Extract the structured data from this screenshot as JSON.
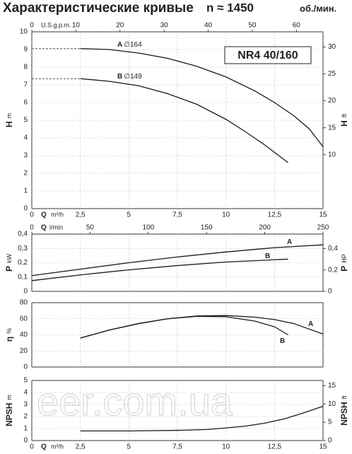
{
  "header": {
    "title": "Характеристические кривые",
    "speed": "n ≈ 1450",
    "unit": "об./мин."
  },
  "watermark": "eer.com.ua",
  "chart_data": [
    {
      "type": "line",
      "color": "#1a1a1a",
      "grid": true,
      "leader_lines": true,
      "model": "NR4 40/160",
      "xlabel": "Q",
      "xunit": "m³/h",
      "xlim": [
        0,
        15
      ],
      "xticks": [
        0,
        {
          "value": 2.5,
          "label": "2,5"
        },
        5,
        {
          "value": 7.5,
          "label": "7,5"
        },
        10,
        {
          "value": 12.5,
          "label": "12,5"
        },
        15
      ],
      "x2label": "U.S.g.p.m.",
      "x2lim": [
        0,
        66.04
      ],
      "x2ticks": [
        0,
        10,
        20,
        30,
        40,
        50,
        60
      ],
      "ylabel": "H",
      "yunit": "m",
      "ylim": [
        0,
        10
      ],
      "yticks": [
        0,
        1,
        2,
        3,
        4,
        5,
        6,
        7,
        8,
        9,
        10
      ],
      "y2label": "H",
      "y2unit": "ft",
      "y2lim": [
        0,
        32.81
      ],
      "y2ticks": [
        10,
        15,
        20,
        25,
        30
      ],
      "series": [
        {
          "name": "A",
          "label": "∅164",
          "x": [
            2.5,
            4,
            5.5,
            7,
            8.5,
            10,
            11.5,
            12.5,
            13.5,
            14.3,
            15
          ],
          "values": [
            9.05,
            9.0,
            8.8,
            8.5,
            8.05,
            7.45,
            6.65,
            6.0,
            5.25,
            4.5,
            3.5
          ]
        },
        {
          "name": "B",
          "label": "∅149",
          "x": [
            2.5,
            4,
            5.5,
            7,
            8.5,
            10,
            11,
            12,
            13.2
          ],
          "values": [
            7.35,
            7.2,
            6.95,
            6.5,
            5.9,
            5.05,
            4.35,
            3.6,
            2.6
          ]
        }
      ]
    },
    {
      "type": "line",
      "color": "#1a1a1a",
      "grid": true,
      "x2label": "Q",
      "x2unit": "l/min",
      "x2lim": [
        0,
        250
      ],
      "x2ticks": [
        0,
        50,
        100,
        150,
        200,
        250
      ],
      "xlim": [
        0,
        15
      ],
      "xticks": [
        0,
        2.5,
        5,
        7.5,
        10,
        12.5,
        15
      ],
      "ylabel": "P",
      "yunit": "kW",
      "ylim": [
        0,
        0.4
      ],
      "yticks": [
        0,
        {
          "value": 0.1,
          "label": "0,1"
        },
        {
          "value": 0.2,
          "label": "0,2"
        },
        {
          "value": 0.3,
          "label": "0,3"
        },
        {
          "value": 0.4,
          "label": "0,4"
        }
      ],
      "y2label": "P",
      "y2unit": "HP",
      "y2lim": [
        0,
        0.536
      ],
      "y2ticks": [
        0,
        {
          "value": 0.2,
          "label": "0,2"
        },
        {
          "value": 0.4,
          "label": "0,4"
        }
      ],
      "series": [
        {
          "name": "A",
          "x": [
            0,
            2.5,
            5,
            7.5,
            10,
            12.5,
            15
          ],
          "values": [
            0.11,
            0.155,
            0.2,
            0.24,
            0.275,
            0.305,
            0.325
          ]
        },
        {
          "name": "B",
          "x": [
            0,
            2.5,
            5,
            7.5,
            10,
            13.2
          ],
          "values": [
            0.075,
            0.115,
            0.15,
            0.18,
            0.205,
            0.225
          ]
        }
      ]
    },
    {
      "type": "line",
      "color": "#1a1a1a",
      "grid": true,
      "xlim": [
        0,
        15
      ],
      "xticks": [
        0,
        2.5,
        5,
        7.5,
        10,
        12.5,
        15
      ],
      "ylabel": "η",
      "yunit": "%",
      "ylim": [
        0,
        80
      ],
      "yticks": [
        0,
        20,
        40,
        60,
        80
      ],
      "series": [
        {
          "name": "A",
          "x": [
            2.5,
            4,
            5.5,
            7,
            8.5,
            10,
            11.5,
            12.5,
            13.5,
            15
          ],
          "values": [
            36,
            46,
            54,
            60,
            63.5,
            64,
            62,
            59,
            54,
            41
          ]
        },
        {
          "name": "B",
          "x": [
            2.5,
            4,
            5.5,
            7,
            8.5,
            10,
            11.5,
            12.5,
            13.2
          ],
          "values": [
            36,
            46,
            54,
            60,
            63,
            62.5,
            57,
            50,
            40
          ]
        }
      ]
    },
    {
      "type": "line",
      "color": "#1a1a1a",
      "grid": true,
      "xlabel": "Q",
      "xunit": "m³/h",
      "xlim": [
        0,
        15
      ],
      "xticks": [
        0,
        {
          "value": 2.5,
          "label": "2,5"
        },
        5,
        {
          "value": 7.5,
          "label": "7,5"
        },
        10,
        {
          "value": 12.5,
          "label": "12,5"
        },
        15
      ],
      "ylabel": "NPSH",
      "yunit": "m",
      "ylim": [
        0,
        5
      ],
      "yticks": [
        0,
        1,
        2,
        3,
        4,
        5
      ],
      "y2label": "NPSH",
      "y2unit": "ft",
      "y2lim": [
        0,
        16.4
      ],
      "y2ticks": [
        0,
        5,
        10,
        15
      ],
      "series": [
        {
          "x": [
            2.5,
            5,
            7.5,
            9,
            10,
            11,
            12,
            13,
            14,
            15
          ],
          "values": [
            0.8,
            0.8,
            0.85,
            0.92,
            1.05,
            1.2,
            1.45,
            1.8,
            2.3,
            2.85
          ]
        }
      ]
    }
  ]
}
